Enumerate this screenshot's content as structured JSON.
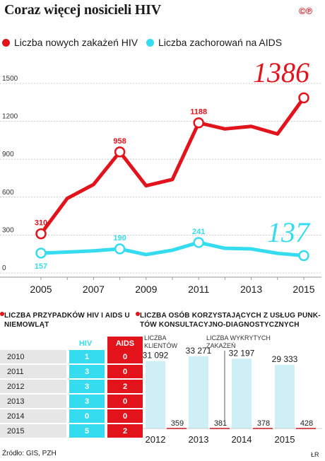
{
  "header": {
    "title": "Coraz więcej nosicieli HIV",
    "logo": "©℗"
  },
  "legend": {
    "hiv": "Liczba nowych zakażeń HIV",
    "aids": "Liczba zachorowań na AIDS"
  },
  "colors": {
    "hiv": "#e3131b",
    "aids": "#35dcef",
    "gray_bar": "#cdeff5"
  },
  "chart_data": [
    {
      "type": "line",
      "x": [
        2005,
        2006,
        2007,
        2008,
        2009,
        2010,
        2011,
        2012,
        2013,
        2014,
        2015
      ],
      "xticks": [
        "2005",
        "2007",
        "2009",
        "2011",
        "2013",
        "2015"
      ],
      "yticks": [
        "0",
        "300",
        "600",
        "900",
        "1200",
        "1500"
      ],
      "ylim": [
        0,
        1500
      ],
      "series": [
        {
          "name": "Liczba nowych zakażeń HIV",
          "values": [
            310,
            590,
            700,
            958,
            690,
            740,
            1188,
            1140,
            1160,
            1100,
            1386
          ],
          "labeled": {
            "2005": "310",
            "2008": "958",
            "2011": "1188"
          },
          "highlight": "1386"
        },
        {
          "name": "Liczba zachorowań na AIDS",
          "values": [
            157,
            165,
            175,
            190,
            145,
            180,
            241,
            195,
            190,
            155,
            137
          ],
          "labeled": {
            "2005": "157",
            "2008": "190",
            "2011": "241"
          },
          "highlight": "137"
        }
      ]
    },
    {
      "type": "table",
      "title": "LICZBA PRZYPADKÓW HIV I AIDS U NIEMOWLĄT",
      "columns": [
        "HIV",
        "AIDS"
      ],
      "rows": [
        {
          "year": "2010",
          "hiv": "1",
          "aids": "0"
        },
        {
          "year": "2011",
          "hiv": "3",
          "aids": "0"
        },
        {
          "year": "2012",
          "hiv": "3",
          "aids": "2"
        },
        {
          "year": "2013",
          "hiv": "3",
          "aids": "0"
        },
        {
          "year": "2014",
          "hiv": "0",
          "aids": "0"
        },
        {
          "year": "2015",
          "hiv": "5",
          "aids": "2"
        }
      ]
    },
    {
      "type": "bar",
      "title": "LICZBA OSÓB KORZYSTAJĄCYCH Z USŁUG PUNK-TÓW KONSULTACYJNO-DIAGNOSTYCZNYCH",
      "categories": [
        "2012",
        "2013",
        "2014",
        "2015"
      ],
      "series": [
        {
          "name": "LICZBA KLIENTÓW",
          "values": [
            31092,
            33271,
            32197,
            29333
          ],
          "labels": [
            "31 092",
            "33 271",
            "32 197",
            "29 333"
          ]
        },
        {
          "name": "LICZBA WYKRYTYCH ZAKAŻEŃ",
          "values": [
            359,
            381,
            378,
            428
          ],
          "labels": [
            "359",
            "381",
            "378",
            "428"
          ]
        }
      ],
      "annotations": {
        "clients": "LICZBA KLIENTÓW",
        "infections": "LICZBA WYKRYTYCH ZAKAŻEŃ"
      }
    }
  ],
  "footer": {
    "source": "Źródło: GIS, PZH",
    "author": "ŁR"
  }
}
